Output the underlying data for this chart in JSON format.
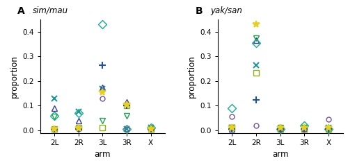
{
  "panel_A": {
    "title": "sim/mau",
    "xlabel": "arm",
    "ylabel": "proportion",
    "arms": [
      "2L",
      "2R",
      "3L",
      "3R",
      "X"
    ],
    "series": [
      {
        "marker": "x",
        "color": "#1E9696",
        "markersize": 5.5,
        "edgewidth": 1.5,
        "fillstyle": "full",
        "values": [
          0.13,
          0.075,
          0.17,
          0.005,
          0.01
        ]
      },
      {
        "marker": "^",
        "color": "#3A3A9A",
        "markersize": 6,
        "edgewidth": 1.0,
        "fillstyle": "none",
        "values": [
          0.09,
          0.04,
          0.175,
          0.115,
          0.01
        ]
      },
      {
        "marker": "D",
        "color": "#10B090",
        "markersize": 6,
        "edgewidth": 1.0,
        "fillstyle": "none",
        "values": [
          0.06,
          0.07,
          0.43,
          0.005,
          0.01
        ]
      },
      {
        "marker": "v",
        "color": "#20A050",
        "markersize": 6,
        "edgewidth": 1.0,
        "fillstyle": "none",
        "values": [
          0.055,
          0.005,
          0.04,
          0.06,
          0.005
        ]
      },
      {
        "marker": "s",
        "color": "#90B010",
        "markersize": 6,
        "edgewidth": 1.0,
        "fillstyle": "none",
        "values": [
          0.005,
          0.01,
          0.01,
          0.1,
          0.005
        ]
      },
      {
        "marker": "o",
        "color": "#7050A0",
        "markersize": 5,
        "edgewidth": 1.0,
        "fillstyle": "none",
        "values": [
          0.005,
          0.005,
          0.13,
          0.005,
          0.005
        ]
      },
      {
        "marker": "+",
        "color": "#2050B0",
        "markersize": 7,
        "edgewidth": 1.5,
        "fillstyle": "full",
        "values": [
          0.005,
          0.005,
          0.265,
          0.1,
          0.005
        ]
      },
      {
        "marker": "*",
        "color": "#E8D020",
        "markersize": 7,
        "edgewidth": 1.2,
        "fillstyle": "full",
        "values": [
          0.005,
          0.008,
          0.155,
          0.105,
          0.005
        ]
      }
    ]
  },
  "panel_B": {
    "title": "yak/san",
    "xlabel": "arm",
    "ylabel": "proportion",
    "arms": [
      "2L",
      "2R",
      "3L",
      "3R",
      "X"
    ],
    "series": [
      {
        "marker": "x",
        "color": "#1E9696",
        "markersize": 5.5,
        "edgewidth": 1.5,
        "fillstyle": "full",
        "values": [
          0.01,
          0.265,
          0.005,
          0.01,
          0.01
        ]
      },
      {
        "marker": "^",
        "color": "#3A3A9A",
        "markersize": 6,
        "edgewidth": 1.0,
        "fillstyle": "none",
        "values": [
          0.005,
          0.365,
          0.005,
          0.005,
          0.005
        ]
      },
      {
        "marker": "D",
        "color": "#10B090",
        "markersize": 6,
        "edgewidth": 1.0,
        "fillstyle": "none",
        "values": [
          0.09,
          0.355,
          0.005,
          0.02,
          0.005
        ]
      },
      {
        "marker": "v",
        "color": "#20A050",
        "markersize": 6,
        "edgewidth": 1.0,
        "fillstyle": "none",
        "values": [
          0.01,
          0.375,
          0.01,
          0.01,
          0.005
        ]
      },
      {
        "marker": "s",
        "color": "#90B010",
        "markersize": 6,
        "edgewidth": 1.0,
        "fillstyle": "none",
        "values": [
          0.01,
          0.235,
          0.005,
          0.005,
          0.005
        ]
      },
      {
        "marker": "o",
        "color": "#7050A0",
        "markersize": 5,
        "edgewidth": 1.0,
        "fillstyle": "none",
        "values": [
          0.055,
          0.02,
          0.005,
          0.005,
          0.045
        ]
      },
      {
        "marker": "+",
        "color": "#2050B0",
        "markersize": 7,
        "edgewidth": 1.5,
        "fillstyle": "full",
        "values": [
          0.005,
          0.125,
          0.005,
          0.005,
          0.005
        ]
      },
      {
        "marker": "*",
        "color": "#E8D020",
        "markersize": 7,
        "edgewidth": 1.2,
        "fillstyle": "full",
        "values": [
          0.01,
          0.43,
          0.01,
          0.01,
          0.01
        ]
      }
    ]
  },
  "ylim": [
    -0.01,
    0.45
  ],
  "yticks": [
    0.0,
    0.1,
    0.2,
    0.3,
    0.4
  ],
  "ytick_labels": [
    "0.0",
    "0.1",
    "0.2",
    "0.3",
    "0.4"
  ],
  "label_A": "A",
  "label_B": "B"
}
